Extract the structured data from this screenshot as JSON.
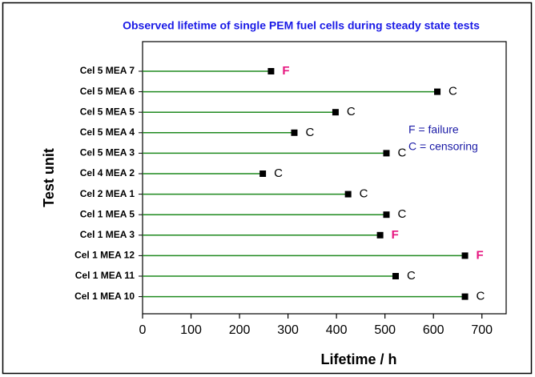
{
  "chart_data": {
    "type": "lollipop",
    "title": "Observed lifetime of single PEM fuel cells during steady state tests",
    "x_label": "Lifetime / h",
    "y_label": "Test unit",
    "categories": [
      "Cel 5 MEA 7",
      "Cel 5 MEA 6",
      "Cel 5 MEA 5",
      "Cel 5 MEA 4",
      "Cel 5 MEA 3",
      "Cel 4 MEA 2",
      "Cel 2 MEA 1",
      "Cel 1 MEA 5",
      "Cel 1 MEA 3",
      "Cel 1 MEA 12",
      "Cel 1 MEA 11",
      "Cel 1 MEA 10"
    ],
    "values": [
      265,
      608,
      398,
      313,
      503,
      248,
      424,
      503,
      490,
      665,
      522,
      665
    ],
    "point_labels": [
      "F",
      "C",
      "C",
      "C",
      "C",
      "C",
      "C",
      "C",
      "F",
      "F",
      "C",
      "C"
    ],
    "point_label_colors": [
      "#e6157f",
      "#000000",
      "#000000",
      "#000000",
      "#000000",
      "#000000",
      "#000000",
      "#000000",
      "#e6157f",
      "#e6157f",
      "#000000",
      "#000000"
    ],
    "line_color": "#1f8a1f",
    "marker_color": "#000000",
    "xlim": [
      0,
      750
    ],
    "xticks": [
      0,
      100,
      200,
      300,
      400,
      500,
      600,
      700
    ],
    "annotations": [
      "F = failure",
      "C = censoring"
    ],
    "annotation_color": "#1a1aa6",
    "title_color": "#1a1ae6"
  }
}
